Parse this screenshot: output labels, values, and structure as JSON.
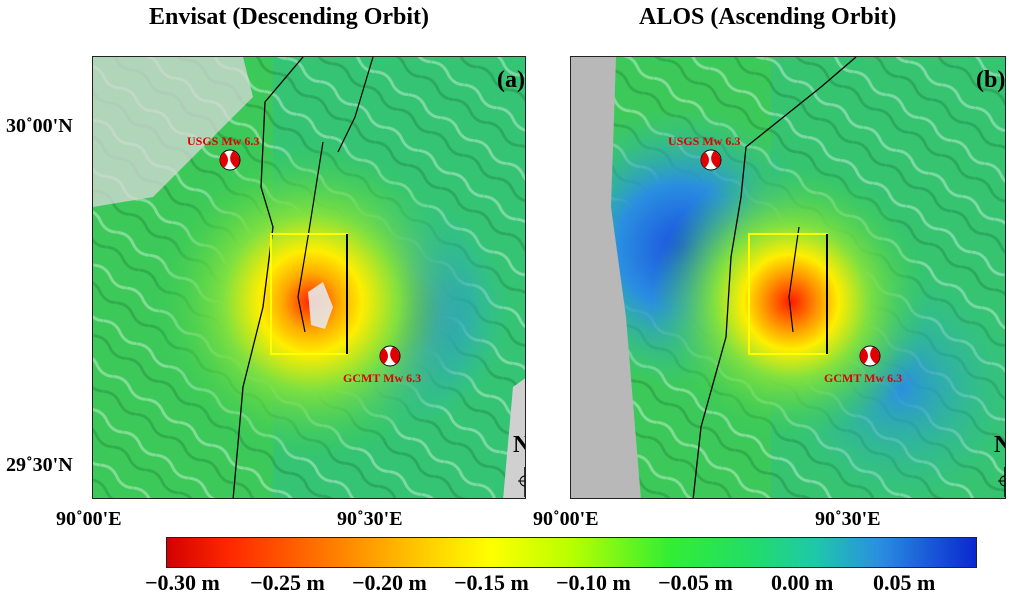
{
  "panels": [
    {
      "title": "Envisat (Descending Orbit)",
      "letter": "(a)",
      "usgs_label": "USGS Mw 6.3",
      "gcmt_label": "GCMT Mw 6.3",
      "north_label": "N"
    },
    {
      "title": "ALOS (Ascending Orbit)",
      "letter": "(b)",
      "usgs_label": "USGS Mw 6.3",
      "gcmt_label": "GCMT Mw 6.3",
      "north_label": "N"
    }
  ],
  "axes": {
    "lat_labels": [
      "30˚00'N",
      "29˚30'N"
    ],
    "lon_labels_a": [
      "90˚00'E",
      "90˚30'E"
    ],
    "lon_labels_b": [
      "90˚00'E",
      "90˚30'E"
    ]
  },
  "colorbar": {
    "labels": [
      "−0.30 m",
      "−0.25 m",
      "−0.20 m",
      "−0.15 m",
      "−0.10 m",
      "−0.05 m",
      "0.00 m",
      "0.05 m"
    ],
    "range_m": [
      -0.32,
      0.08
    ],
    "colors": [
      "#d40000",
      "#ff7a00",
      "#ffff00",
      "#33ee33",
      "#1ec9a8",
      "#0a28d0"
    ]
  },
  "colors": {
    "fault_line": "#000000",
    "study_box": "#ffff00",
    "beachball": "#e00000",
    "label_red": "#e00000"
  }
}
